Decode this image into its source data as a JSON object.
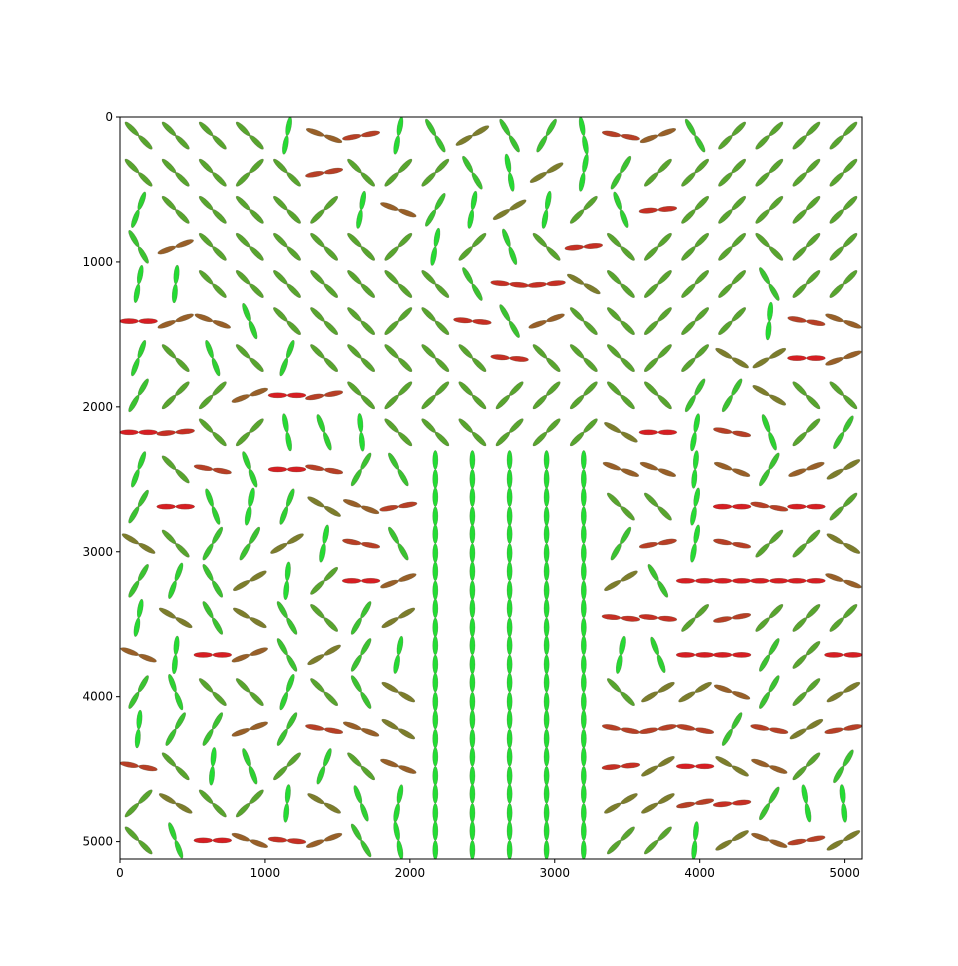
{
  "chart_data": {
    "type": "scatter",
    "title": "",
    "xlabel": "",
    "ylabel": "",
    "xlim": [
      0,
      5120
    ],
    "ylim": [
      5120,
      0
    ],
    "x_ticks": [
      0,
      1000,
      2000,
      3000,
      4000,
      5000
    ],
    "y_ticks": [
      0,
      1000,
      2000,
      3000,
      4000,
      5000
    ],
    "x_tick_labels": [
      "0",
      "1000",
      "2000",
      "3000",
      "4000",
      "5000"
    ],
    "y_tick_labels": [
      "0",
      "1000",
      "2000",
      "3000",
      "4000",
      "5000"
    ],
    "grid": false,
    "glyph": "double-ended bar (propeller) at each grid node; angle = orientation, color = green (vertical) to red (horizontal)",
    "grid_x": [
      128,
      384,
      640,
      896,
      1152,
      1408,
      1664,
      1920,
      2176,
      2432,
      2688,
      2944,
      3200,
      3456,
      3712,
      3968,
      4224,
      4480,
      4736,
      4992
    ],
    "grid_y": [
      128,
      384,
      640,
      896,
      1152,
      1408,
      1664,
      1920,
      2176,
      2432,
      2688,
      2944,
      3200,
      3456,
      3712,
      3968,
      4224,
      4480,
      4736,
      4992
    ],
    "orientation_angles_deg": [
      [
        -45,
        -45,
        -45,
        -45,
        80,
        -20,
        10,
        80,
        -60,
        30,
        -60,
        60,
        -80,
        -10,
        20,
        -60,
        45,
        45,
        45,
        45
      ],
      [
        -45,
        -45,
        -45,
        45,
        -45,
        10,
        -45,
        45,
        45,
        -60,
        -80,
        30,
        80,
        60,
        45,
        45,
        45,
        45,
        45,
        45
      ],
      [
        70,
        -45,
        -45,
        -45,
        -45,
        45,
        80,
        -20,
        60,
        80,
        30,
        80,
        45,
        -70,
        5,
        45,
        45,
        45,
        45,
        45
      ],
      [
        -60,
        20,
        -45,
        -45,
        -45,
        -45,
        -45,
        45,
        80,
        45,
        -70,
        -45,
        5,
        -45,
        45,
        45,
        45,
        -45,
        45,
        45
      ],
      [
        80,
        85,
        -45,
        -45,
        -45,
        -45,
        -45,
        -45,
        -45,
        -60,
        -5,
        5,
        -30,
        -45,
        45,
        45,
        45,
        -60,
        45,
        45
      ],
      [
        0,
        20,
        -20,
        -70,
        -45,
        -45,
        -45,
        45,
        -45,
        -5,
        -60,
        20,
        -45,
        -45,
        45,
        45,
        45,
        85,
        -10,
        -20
      ],
      [
        70,
        -45,
        -70,
        -45,
        70,
        -45,
        -45,
        -45,
        -45,
        -45,
        -5,
        -45,
        -45,
        -45,
        45,
        45,
        -30,
        30,
        0,
        20
      ],
      [
        60,
        45,
        45,
        20,
        0,
        10,
        -45,
        45,
        45,
        -45,
        45,
        45,
        45,
        -45,
        -45,
        60,
        60,
        -30,
        -45,
        -45
      ],
      [
        0,
        5,
        -45,
        45,
        -80,
        -70,
        -85,
        -45,
        -45,
        -45,
        45,
        45,
        45,
        -30,
        0,
        80,
        -10,
        -70,
        45,
        60
      ],
      [
        70,
        -45,
        -10,
        -70,
        0,
        -10,
        60,
        -60,
        -90,
        -90,
        -90,
        -90,
        -90,
        -20,
        -20,
        85,
        -20,
        60,
        20,
        30
      ],
      [
        60,
        0,
        -70,
        80,
        70,
        -30,
        -20,
        10,
        -90,
        -90,
        -90,
        -90,
        -90,
        -45,
        -45,
        80,
        0,
        -10,
        0,
        45
      ],
      [
        -30,
        -45,
        60,
        60,
        30,
        80,
        -10,
        -60,
        -90,
        -90,
        -90,
        -90,
        -90,
        60,
        10,
        80,
        -10,
        45,
        45,
        -30
      ],
      [
        60,
        70,
        -60,
        30,
        85,
        45,
        0,
        20,
        -90,
        -90,
        -90,
        -90,
        -90,
        30,
        -60,
        0,
        0,
        0,
        0,
        -20
      ],
      [
        80,
        -30,
        -60,
        -30,
        -60,
        -45,
        60,
        30,
        -90,
        -90,
        -90,
        -90,
        -90,
        -5,
        -5,
        45,
        10,
        45,
        45,
        45
      ],
      [
        -20,
        85,
        0,
        20,
        -60,
        30,
        60,
        80,
        -90,
        -90,
        -90,
        -90,
        -90,
        80,
        -70,
        0,
        0,
        60,
        45,
        0
      ],
      [
        60,
        -70,
        -45,
        -45,
        70,
        -45,
        -60,
        -30,
        -90,
        -90,
        -90,
        -90,
        -90,
        -45,
        30,
        30,
        -20,
        60,
        45,
        30
      ],
      [
        85,
        60,
        60,
        20,
        60,
        -10,
        -20,
        -30,
        -90,
        -90,
        -90,
        -90,
        -90,
        -10,
        10,
        -10,
        60,
        -10,
        30,
        10
      ],
      [
        -10,
        -45,
        85,
        -70,
        45,
        70,
        -45,
        -20,
        -90,
        -90,
        -90,
        -90,
        -90,
        5,
        30,
        0,
        -30,
        -20,
        45,
        60
      ],
      [
        45,
        -30,
        -45,
        45,
        85,
        -30,
        -70,
        80,
        -90,
        -90,
        -90,
        -90,
        -90,
        30,
        30,
        10,
        5,
        60,
        -80,
        -85
      ],
      [
        -45,
        -70,
        0,
        -20,
        -5,
        20,
        -60,
        -80,
        -90,
        -90,
        -90,
        -90,
        -90,
        45,
        45,
        85,
        30,
        -20,
        10,
        30
      ]
    ]
  }
}
